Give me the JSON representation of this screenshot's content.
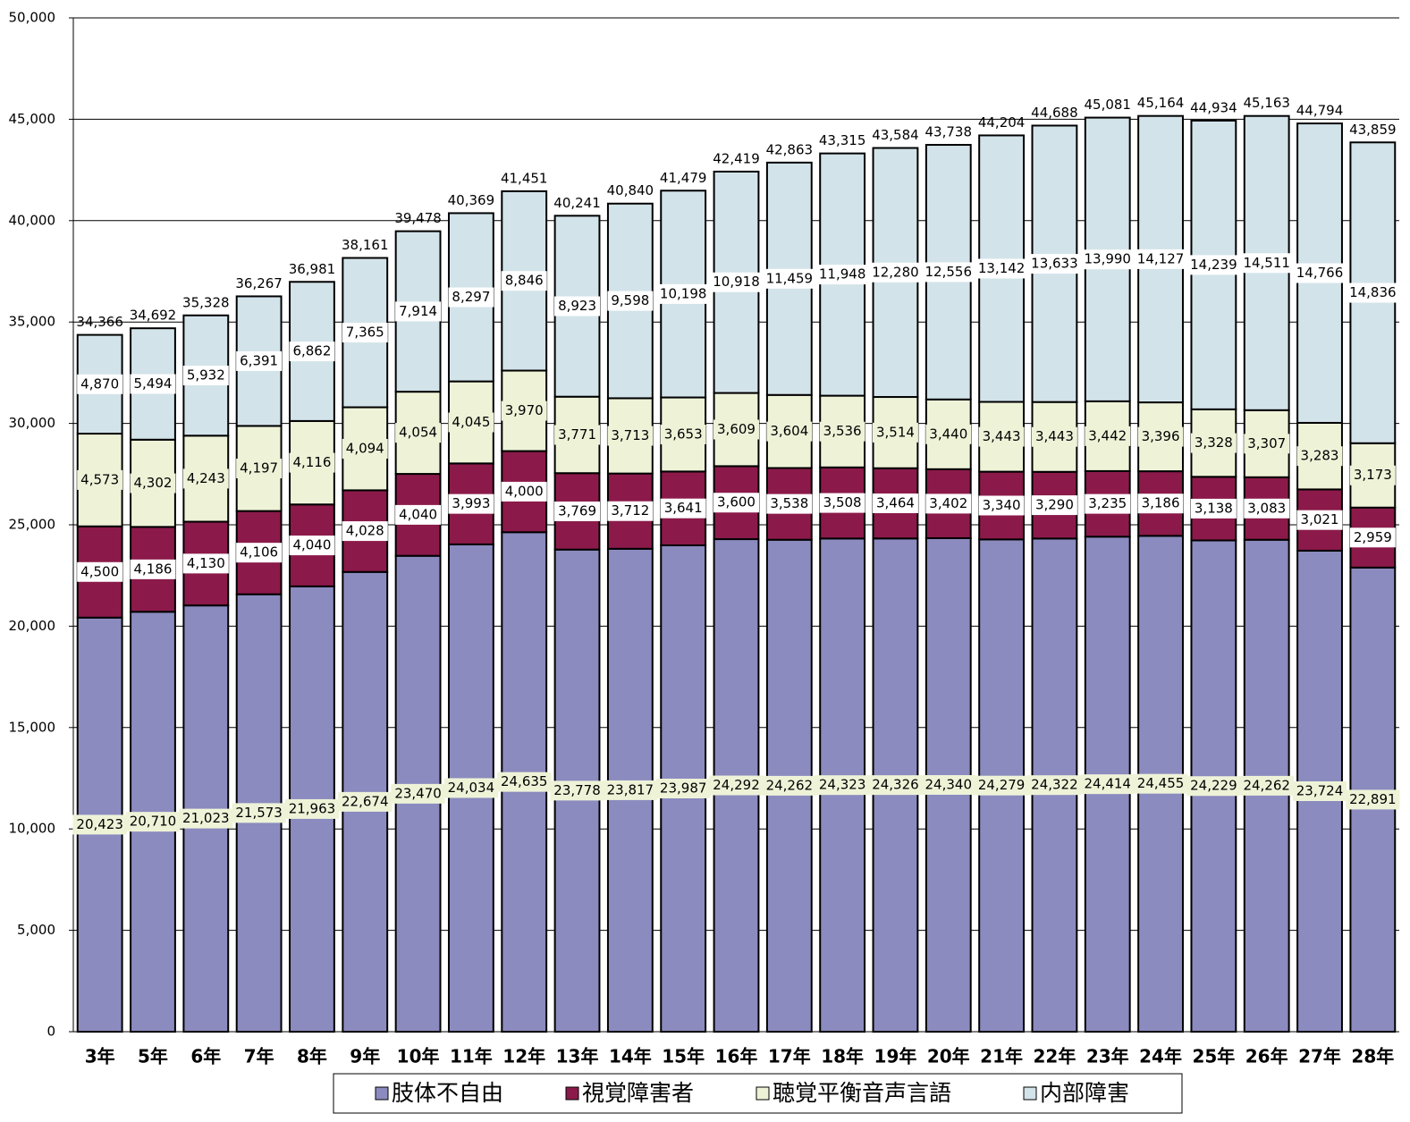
{
  "chart_data": {
    "type": "stacked-bar",
    "categories": [
      "3年",
      "5年",
      "6年",
      "7年",
      "8年",
      "9年",
      "10年",
      "11年",
      "12年",
      "13年",
      "14年",
      "15年",
      "16年",
      "17年",
      "18年",
      "19年",
      "20年",
      "21年",
      "22年",
      "23年",
      "24年",
      "25年",
      "26年",
      "27年",
      "28年"
    ],
    "series": [
      {
        "name": "肢体不自由",
        "color": "#8b8bbf",
        "label_bg": "#eef3d8",
        "values": [
          20423,
          20710,
          21023,
          21573,
          21963,
          22674,
          23470,
          24034,
          24635,
          23778,
          23817,
          23987,
          24292,
          24262,
          24323,
          24326,
          24340,
          24279,
          24322,
          24414,
          24455,
          24229,
          24262,
          23724,
          22891
        ],
        "value_labels": [
          "20,423",
          "20,710",
          "21,023",
          "21,573",
          "21,963",
          "22,674",
          "23,470",
          "24,034",
          "24,635",
          "23,778",
          "23,817",
          "23,987",
          "24,292",
          "24,262",
          "24,323",
          "24,326",
          "24,340",
          "24,279",
          "24,322",
          "24,414",
          "24,455",
          "24,229",
          "24,262",
          "23,724",
          "22,891"
        ]
      },
      {
        "name": "視覚障害者",
        "color": "#8b1a4a",
        "label_bg": "#ffffff",
        "values": [
          4500,
          4186,
          4130,
          4106,
          4040,
          4028,
          4040,
          3993,
          4000,
          3769,
          3712,
          3641,
          3600,
          3538,
          3508,
          3464,
          3402,
          3340,
          3290,
          3235,
          3186,
          3138,
          3083,
          3021,
          2959
        ],
        "value_labels": [
          "4,500",
          "4,186",
          "4,130",
          "4,106",
          "4,040",
          "4,028",
          "4,040",
          "3,993",
          "4,000",
          "3,769",
          "3,712",
          "3,641",
          "3,600",
          "3,538",
          "3,508",
          "3,464",
          "3,402",
          "3,340",
          "3,290",
          "3,235",
          "3,186",
          "3,138",
          "3,083",
          "3,021",
          "2,959"
        ]
      },
      {
        "name": "聴覚平衡音声言語",
        "color": "#eef3d8",
        "label_bg": "#eef3d8",
        "values": [
          4573,
          4302,
          4243,
          4197,
          4116,
          4094,
          4054,
          4045,
          3970,
          3771,
          3713,
          3653,
          3609,
          3604,
          3536,
          3514,
          3440,
          3443,
          3443,
          3442,
          3396,
          3328,
          3307,
          3283,
          3173
        ],
        "value_labels": [
          "4,573",
          "4,302",
          "4,243",
          "4,197",
          "4,116",
          "4,094",
          "4,054",
          "4,045",
          "3,970",
          "3,771",
          "3,713",
          "3,653",
          "3,609",
          "3,604",
          "3,536",
          "3,514",
          "3,440",
          "3,443",
          "3,443",
          "3,442",
          "3,396",
          "3,328",
          "3,307",
          "3,283",
          "3,173"
        ]
      },
      {
        "name": "内部障害",
        "color": "#d3e3ea",
        "label_bg": "#ffffff",
        "values": [
          4870,
          5494,
          5932,
          6391,
          6862,
          7365,
          7914,
          8297,
          8846,
          8923,
          9598,
          10198,
          10918,
          11459,
          11948,
          12280,
          12556,
          13142,
          13633,
          13990,
          14127,
          14239,
          14511,
          14766,
          14836
        ],
        "value_labels": [
          "4,870",
          "5,494",
          "5,932",
          "6,391",
          "6,862",
          "7,365",
          "7,914",
          "8,297",
          "8,846",
          "8,923",
          "9,598",
          "10,198",
          "10,918",
          "11,459",
          "11,948",
          "12,280",
          "12,556",
          "13,142",
          "13,633",
          "13,990",
          "14,127",
          "14,239",
          "14,511",
          "14,766",
          "14,836"
        ]
      }
    ],
    "totals": [
      34366,
      34692,
      35328,
      36267,
      36981,
      38161,
      39478,
      40369,
      41451,
      40241,
      40840,
      41479,
      42419,
      42863,
      43315,
      43584,
      43738,
      44204,
      44688,
      45081,
      45164,
      44934,
      45163,
      44794,
      43859
    ],
    "total_labels": [
      "34,366",
      "34,692",
      "35,328",
      "36,267",
      "36,981",
      "38,161",
      "39,478",
      "40,369",
      "41,451",
      "40,241",
      "40,840",
      "41,479",
      "42,419",
      "42,863",
      "43,315",
      "43,584",
      "43,738",
      "44,204",
      "44,688",
      "45,081",
      "45,164",
      "44,934",
      "45,163",
      "44,794",
      "43,859"
    ],
    "ylim": [
      0,
      50000
    ],
    "yticks": [
      0,
      {
        "value": 5000,
        "label": "5,000"
      },
      {
        "value": 10000,
        "label": "10,000"
      },
      {
        "value": 15000,
        "label": "15,000"
      },
      {
        "value": 20000,
        "label": "20,000"
      },
      {
        "value": 25000,
        "label": "25,000"
      },
      {
        "value": 30000,
        "label": "30,000"
      },
      {
        "value": 35000,
        "label": "35,000"
      },
      {
        "value": 40000,
        "label": "40,000"
      },
      {
        "value": 45000,
        "label": "45,000"
      },
      {
        "value": 50000,
        "label": "50,000"
      }
    ],
    "grid": true,
    "legend": "bottom"
  }
}
